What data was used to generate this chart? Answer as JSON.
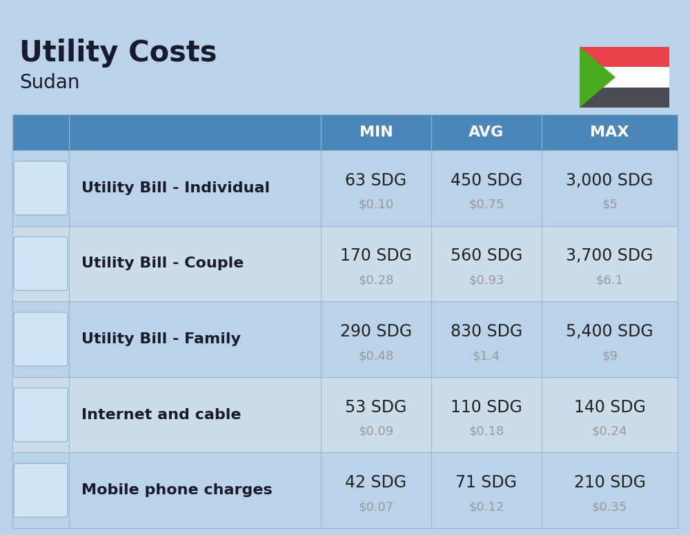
{
  "title": "Utility Costs",
  "subtitle": "Sudan",
  "background_color": "#bad3e8",
  "header_color": "#4d86b8",
  "row_color_a": "#ccdce9",
  "row_color_b": "#bad3e8",
  "header_text_color": "#ffffff",
  "label_text_color": "#1a1a2e",
  "value_text_color": "#222222",
  "usd_text_color": "#999999",
  "border_color": "#93b8d0",
  "col_headers": [
    "MIN",
    "AVG",
    "MAX"
  ],
  "rows": [
    {
      "label": "Utility Bill - Individual",
      "min_sdg": "63 SDG",
      "min_usd": "$0.10",
      "avg_sdg": "450 SDG",
      "avg_usd": "$0.75",
      "max_sdg": "3,000 SDG",
      "max_usd": "$5"
    },
    {
      "label": "Utility Bill - Couple",
      "min_sdg": "170 SDG",
      "min_usd": "$0.28",
      "avg_sdg": "560 SDG",
      "avg_usd": "$0.93",
      "max_sdg": "3,700 SDG",
      "max_usd": "$6.1"
    },
    {
      "label": "Utility Bill - Family",
      "min_sdg": "290 SDG",
      "min_usd": "$0.48",
      "avg_sdg": "830 SDG",
      "avg_usd": "$1.4",
      "max_sdg": "5,400 SDG",
      "max_usd": "$9"
    },
    {
      "label": "Internet and cable",
      "min_sdg": "53 SDG",
      "min_usd": "$0.09",
      "avg_sdg": "110 SDG",
      "avg_usd": "$0.18",
      "max_sdg": "140 SDG",
      "max_usd": "$0.24"
    },
    {
      "label": "Mobile phone charges",
      "min_sdg": "42 SDG",
      "min_usd": "$0.07",
      "avg_sdg": "71 SDG",
      "avg_usd": "$0.12",
      "max_sdg": "210 SDG",
      "max_usd": "$0.35"
    }
  ],
  "flag_red": "#E8414A",
  "flag_white": "#FFFFFF",
  "flag_black": "#4a4a52",
  "flag_green": "#4aab21",
  "title_fontsize": 30,
  "subtitle_fontsize": 20,
  "header_fontsize": 16,
  "label_fontsize": 16,
  "value_fontsize": 17,
  "usd_fontsize": 13
}
